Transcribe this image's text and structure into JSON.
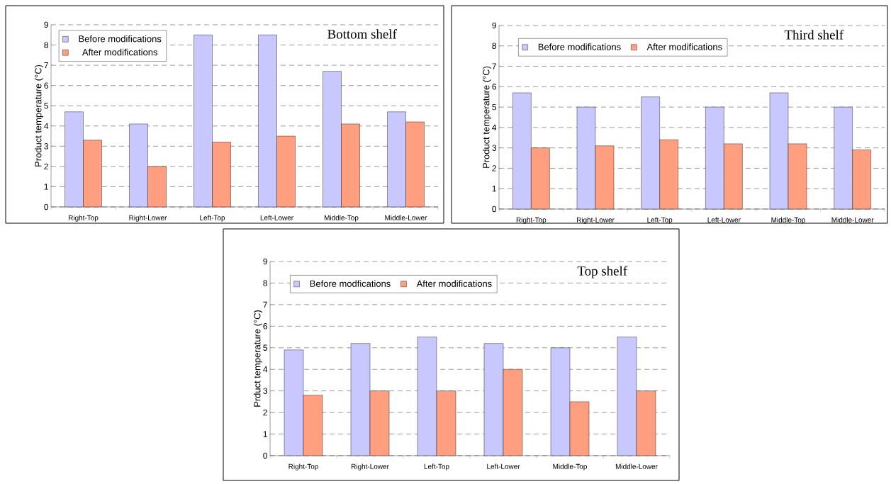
{
  "chart_data": [
    {
      "type": "bar",
      "title": "Bottom shelf",
      "ylabel": "Product temperature (°C)",
      "categories": [
        "Right-Top",
        "Right-Lower",
        "Left-Top",
        "Left-Lower",
        "Middle-Top",
        "Middle-Lower"
      ],
      "series": [
        {
          "name": "Before modifications",
          "color": "#c8c8ff",
          "values": [
            4.7,
            4.1,
            8.5,
            8.5,
            6.7,
            4.7
          ]
        },
        {
          "name": "After modifications",
          "color": "#ff9f80",
          "values": [
            3.3,
            2.0,
            3.2,
            3.5,
            4.1,
            4.2
          ]
        }
      ],
      "ylim": [
        0,
        9
      ],
      "yticks": [
        0,
        1,
        2,
        3,
        4,
        5,
        6,
        7,
        8,
        9
      ],
      "grid": "y",
      "legend": "top left"
    },
    {
      "type": "bar",
      "title": "Third shelf",
      "ylabel": "Product temperature (°C)",
      "categories": [
        "Right-Top",
        "Right-Lower",
        "Left-Top",
        "Left-Lower",
        "Middle-Top",
        "Middle-Lower"
      ],
      "series": [
        {
          "name": "Before modifications",
          "color": "#c8c8ff",
          "values": [
            5.7,
            5.0,
            5.5,
            5.0,
            5.7,
            5.0
          ]
        },
        {
          "name": "After modifications",
          "color": "#ff9f80",
          "values": [
            3.0,
            3.1,
            3.4,
            3.2,
            3.2,
            2.9
          ]
        }
      ],
      "ylim": [
        0,
        9
      ],
      "yticks": [
        0,
        1,
        2,
        3,
        4,
        5,
        6,
        7,
        8,
        9
      ],
      "grid": "y",
      "legend": "top"
    },
    {
      "type": "bar",
      "title": "Top shelf",
      "ylabel": "Prduct temperature (°C)",
      "categories": [
        "Right-Top",
        "Right-Lower",
        "Left-Top",
        "Left-Lower",
        "Middle-Top",
        "Middle-Lower"
      ],
      "series": [
        {
          "name": "Before modfications",
          "color": "#c8c8ff",
          "values": [
            4.9,
            5.2,
            5.5,
            5.2,
            5.0,
            5.5
          ]
        },
        {
          "name": "After modifications",
          "color": "#ff9f80",
          "values": [
            2.8,
            3.0,
            3.0,
            4.0,
            2.5,
            3.0
          ]
        }
      ],
      "ylim": [
        0,
        9
      ],
      "yticks": [
        0,
        1,
        2,
        3,
        4,
        5,
        6,
        7,
        8,
        9
      ],
      "grid": "y",
      "legend": "top"
    }
  ]
}
